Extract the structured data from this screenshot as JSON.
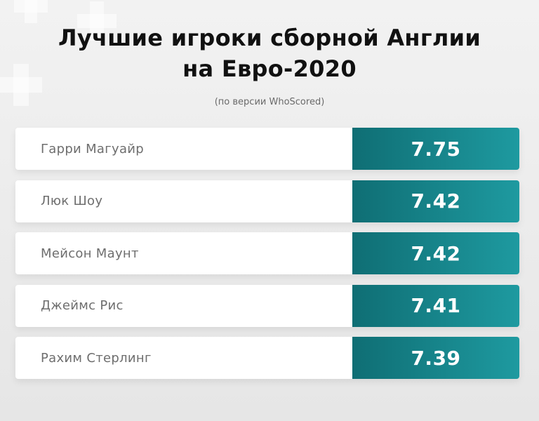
{
  "header": {
    "title_line1": "Лучшие игроки сборной Англии",
    "title_line2": "на Евро-2020",
    "subtitle": "(по версии WhoScored)"
  },
  "players": [
    {
      "name": "Гарри Магуайр",
      "rating": "7.75"
    },
    {
      "name": "Люк Шоу",
      "rating": "7.42"
    },
    {
      "name": "Мейсон Маунт",
      "rating": "7.42"
    },
    {
      "name": "Джеймс Рис",
      "rating": "7.41"
    },
    {
      "name": "Рахим Стерлинг",
      "rating": "7.39"
    }
  ],
  "colors": {
    "accent_dark": "#0f6e74",
    "accent_light": "#1e9aa0",
    "title": "#111111",
    "name_text": "#6e6e6e"
  }
}
